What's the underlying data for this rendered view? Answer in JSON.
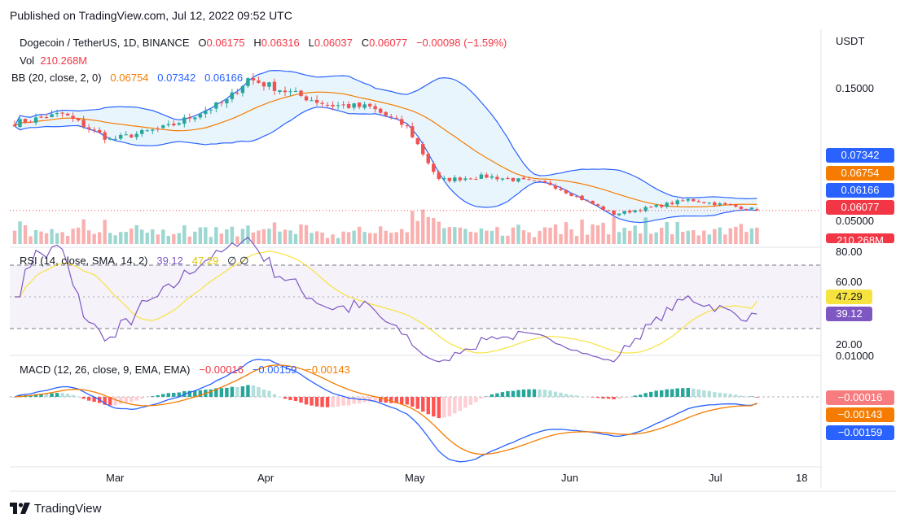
{
  "header": {
    "published": "Published on TradingView.com, Jul 12, 2022 09:52 UTC"
  },
  "footer": {
    "brand": "TradingView"
  },
  "legend": {
    "symbol": "Dogecoin / TetherUS, 1D, BINANCE",
    "o_label": "O",
    "o": "0.06175",
    "h_label": "H",
    "h": "0.06316",
    "l_label": "L",
    "l": "0.06037",
    "c_label": "C",
    "c": "0.06077",
    "change": "−0.00098 (−1.59%)",
    "vol_label": "Vol",
    "vol": "210.268M",
    "bb_label": "BB (20, close, 2, 0)",
    "bb_mid": "0.06754",
    "bb_up": "0.07342",
    "bb_low": "0.06166",
    "rsi_label": "RSI (14, close, SMA, 14, 2)",
    "rsi": "39.12",
    "rsi_sma": "47.29",
    "rsi_extra": "∅ ∅",
    "macd_label": "MACD (12, 26, close, 9, EMA, EMA)",
    "macd_hist": "−0.00016",
    "macd_line": "−0.00159",
    "macd_signal": "−0.00143"
  },
  "price_axis": {
    "unit": "USDT",
    "ticks": [
      "0.15000",
      "0.05000"
    ]
  },
  "rsi_axis": {
    "ticks": [
      "80.00",
      "60.00",
      "20.00"
    ]
  },
  "macd_axis": {
    "ticks": [
      "0.01000"
    ]
  },
  "price_badges": [
    {
      "value": "0.07342",
      "color": "#2962ff"
    },
    {
      "value": "0.06754",
      "color": "#f57c00"
    },
    {
      "value": "0.06166",
      "color": "#2962ff"
    },
    {
      "value": "0.06077",
      "color": "#f23645"
    },
    {
      "value": "210.268M",
      "color": "#f23645"
    }
  ],
  "rsi_badges": [
    {
      "value": "47.29",
      "color": "#f7e33f",
      "text_color": "#131722"
    },
    {
      "value": "39.12",
      "color": "#7e57c2",
      "text_color": "#ffffff"
    }
  ],
  "macd_badges": [
    {
      "value": "−0.00016",
      "color": "#f77c80"
    },
    {
      "value": "−0.00143",
      "color": "#f57c00"
    },
    {
      "value": "−0.00159",
      "color": "#2962ff"
    }
  ],
  "time_axis": [
    "Mar",
    "Apr",
    "May",
    "Jun",
    "Jul",
    "18"
  ],
  "colors": {
    "up": "#26a69a",
    "down": "#ef5350",
    "bb_band": "#2962ff",
    "bb_basis": "#f57c00",
    "bb_fill": "#e3f2fd",
    "rsi": "#7e57c2",
    "rsi_ma": "#f7e33f",
    "macd": "#2962ff",
    "signal": "#f57c00"
  },
  "chart_data": {
    "type": "candlestick",
    "symbol": "Dogecoin / TetherUS",
    "interval": "1D",
    "exchange": "BINANCE",
    "key_points": [
      {
        "date": "2022-02-20",
        "close": 0.128
      },
      {
        "date": "2022-03-01",
        "close": 0.135
      },
      {
        "date": "2022-03-10",
        "close": 0.115
      },
      {
        "date": "2022-03-21",
        "close": 0.125
      },
      {
        "date": "2022-04-01",
        "close": 0.145
      },
      {
        "date": "2022-04-05",
        "close": 0.162
      },
      {
        "date": "2022-04-20",
        "close": 0.142
      },
      {
        "date": "2022-04-28",
        "close": 0.14
      },
      {
        "date": "2022-05-05",
        "close": 0.125
      },
      {
        "date": "2022-05-11",
        "close": 0.084
      },
      {
        "date": "2022-05-20",
        "close": 0.087
      },
      {
        "date": "2022-06-01",
        "close": 0.081
      },
      {
        "date": "2022-06-13",
        "close": 0.058
      },
      {
        "date": "2022-06-20",
        "close": 0.063
      },
      {
        "date": "2022-06-27",
        "close": 0.069
      },
      {
        "date": "2022-07-11",
        "close": 0.06077
      }
    ],
    "last": {
      "open": 0.06175,
      "high": 0.06316,
      "low": 0.06037,
      "close": 0.06077,
      "change": -0.00098,
      "change_pct": -1.59,
      "volume": "210.268M"
    },
    "bollinger": {
      "period": 20,
      "mult": 2,
      "upper": 0.07342,
      "basis": 0.06754,
      "lower": 0.06166
    },
    "rsi": {
      "period": 14,
      "value": 39.12,
      "sma": 47.29,
      "bands": [
        70,
        30
      ]
    },
    "macd": {
      "fast": 12,
      "slow": 26,
      "signal": 9,
      "macd": -0.00159,
      "signal_value": -0.00143,
      "histogram": -0.00016
    },
    "xlabels": [
      "Mar",
      "Apr",
      "May",
      "Jun",
      "Jul",
      "18"
    ],
    "price_ticks": [
      "0.15000",
      "0.05000"
    ],
    "rsi_ticks": [
      "80.00",
      "60.00",
      "20.00"
    ]
  }
}
